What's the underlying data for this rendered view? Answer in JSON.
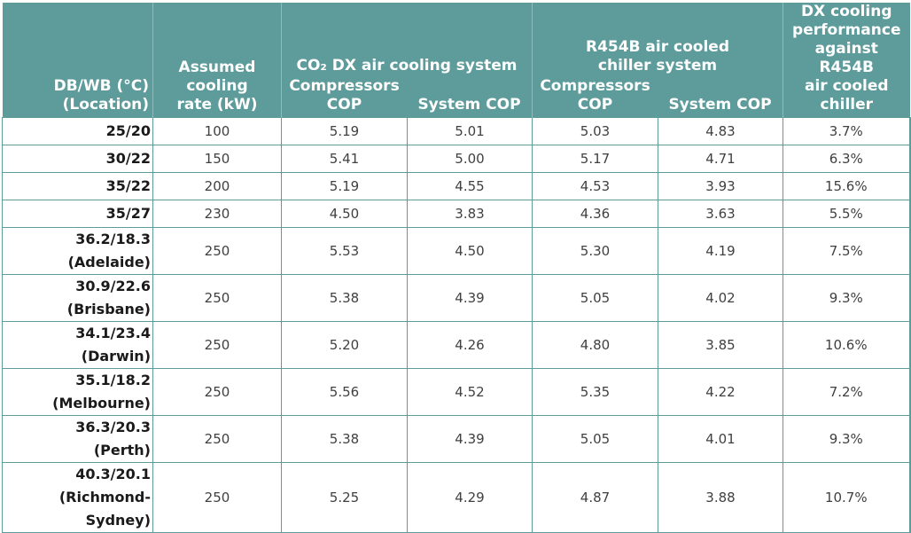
{
  "headers": {
    "location": [
      "DB/WB (°C)",
      "(Location)"
    ],
    "cooling_rate": [
      "Assumed",
      "cooling",
      "rate (kW)"
    ],
    "co2_group": "CO₂ DX air cooling system",
    "co2_comp_cop": [
      "Compressors",
      "COP"
    ],
    "co2_sys_cop": "System COP",
    "r454b_group": [
      "R454B air cooled",
      "chiller system"
    ],
    "r454b_comp_cop": [
      "Compressors",
      "COP"
    ],
    "r454b_sys_cop": "System COP",
    "performance": [
      "DX cooling",
      "performance",
      "against R454B",
      "air cooled",
      "chiller"
    ]
  },
  "rows": [
    {
      "loc": [
        "25/20"
      ],
      "rate": "100",
      "co2_comp": "5.19",
      "co2_sys": "5.01",
      "r_comp": "5.03",
      "r_sys": "4.83",
      "perf": "3.7%"
    },
    {
      "loc": [
        "30/22"
      ],
      "rate": "150",
      "co2_comp": "5.41",
      "co2_sys": "5.00",
      "r_comp": "5.17",
      "r_sys": "4.71",
      "perf": "6.3%"
    },
    {
      "loc": [
        "35/22"
      ],
      "rate": "200",
      "co2_comp": "5.19",
      "co2_sys": "4.55",
      "r_comp": "4.53",
      "r_sys": "3.93",
      "perf": "15.6%"
    },
    {
      "loc": [
        "35/27"
      ],
      "rate": "230",
      "co2_comp": "4.50",
      "co2_sys": "3.83",
      "r_comp": "4.36",
      "r_sys": "3.63",
      "perf": "5.5%"
    },
    {
      "loc": [
        "36.2/18.3",
        "(Adelaide)"
      ],
      "rate": "250",
      "co2_comp": "5.53",
      "co2_sys": "4.50",
      "r_comp": "5.30",
      "r_sys": "4.19",
      "perf": "7.5%"
    },
    {
      "loc": [
        "30.9/22.6",
        "(Brisbane)"
      ],
      "rate": "250",
      "co2_comp": "5.38",
      "co2_sys": "4.39",
      "r_comp": "5.05",
      "r_sys": "4.02",
      "perf": "9.3%"
    },
    {
      "loc": [
        "34.1/23.4",
        "(Darwin)"
      ],
      "rate": "250",
      "co2_comp": "5.20",
      "co2_sys": "4.26",
      "r_comp": "4.80",
      "r_sys": "3.85",
      "perf": "10.6%"
    },
    {
      "loc": [
        "35.1/18.2",
        "(Melbourne)"
      ],
      "rate": "250",
      "co2_comp": "5.56",
      "co2_sys": "4.52",
      "r_comp": "5.35",
      "r_sys": "4.22",
      "perf": "7.2%"
    },
    {
      "loc": [
        "36.3/20.3",
        "(Perth)"
      ],
      "rate": "250",
      "co2_comp": "5.38",
      "co2_sys": "4.39",
      "r_comp": "5.05",
      "r_sys": "4.01",
      "perf": "9.3%"
    },
    {
      "loc": [
        "40.3/20.1",
        "(Richmond-Sydney)"
      ],
      "rate": "250",
      "co2_comp": "5.25",
      "co2_sys": "4.29",
      "r_comp": "4.87",
      "r_sys": "3.88",
      "perf": "10.7%"
    }
  ],
  "colors": {
    "header_bg": "#5e9b9b",
    "header_text": "#ffffff",
    "grid": "#5e9b9b",
    "cell_text": "#404040"
  }
}
